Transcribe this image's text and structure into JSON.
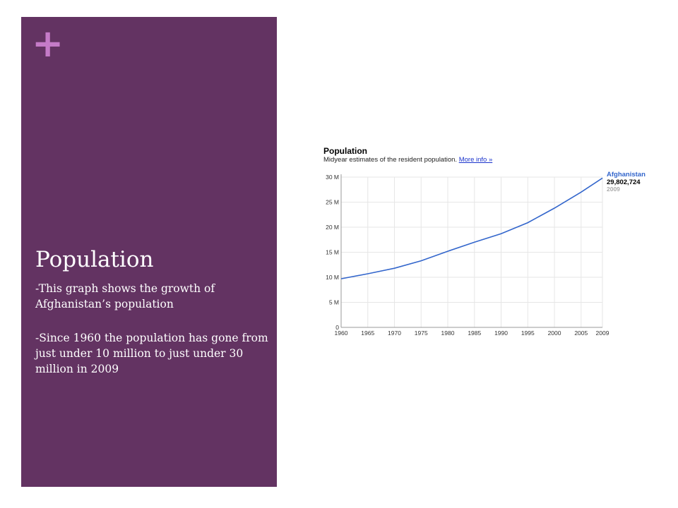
{
  "slide": {
    "plus_symbol": "+",
    "title": "Population",
    "bullets": [
      "-This graph shows the growth of Afghanistan’s population",
      "-Since 1960 the population has gone from just under 10 million to just under 30 million in 2009"
    ],
    "colors": {
      "sidebar": "#633362",
      "plus": "#c57bc8",
      "text": "#ffffff"
    }
  },
  "chart_header": {
    "title": "Population",
    "subtitle": "Midyear estimates of the resident population.",
    "more_info_link": "More info »"
  },
  "chart_data": {
    "type": "line",
    "title": "Population",
    "subtitle": "Midyear estimates of the resident population.",
    "xlabel": "",
    "ylabel": "",
    "x": [
      1960,
      1965,
      1970,
      1975,
      1980,
      1985,
      1990,
      1995,
      2000,
      2005,
      2009
    ],
    "series": [
      {
        "name": "Afghanistan",
        "color": "#3366cc",
        "values": [
          9.7,
          10.7,
          11.8,
          13.3,
          15.2,
          17.0,
          18.7,
          20.9,
          23.8,
          27.0,
          29.802724
        ]
      }
    ],
    "xlim": [
      1960,
      2009
    ],
    "ylim": [
      0,
      30
    ],
    "x_ticks": [
      1960,
      1965,
      1970,
      1975,
      1980,
      1985,
      1990,
      1995,
      2000,
      2005,
      2009
    ],
    "x_tick_labels": [
      "1960",
      "1965",
      "1970",
      "1975",
      "1980",
      "1985",
      "1990",
      "1995",
      "2000",
      "2005",
      "2009"
    ],
    "y_ticks": [
      0,
      5,
      10,
      15,
      20,
      25,
      30
    ],
    "y_tick_labels": [
      "0",
      "5 M",
      "10 M",
      "15 M",
      "20 M",
      "25 M",
      "30 M"
    ],
    "grid": true,
    "legend": {
      "position": "right",
      "name": "Afghanistan",
      "value": "29,802,724",
      "year": "2009"
    }
  }
}
